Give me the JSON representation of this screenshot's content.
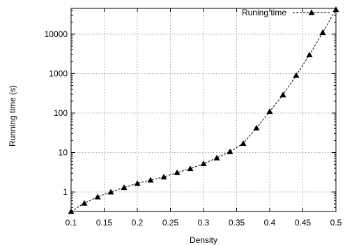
{
  "chart_data": {
    "type": "line",
    "xlabel": "Density",
    "ylabel": "Running time (s)",
    "xlim": [
      0.1,
      0.5
    ],
    "ylim": [
      0.32,
      45000
    ],
    "yscale": "log",
    "grid": true,
    "legend_position": "top-right",
    "x_ticks": [
      0.1,
      0.15,
      0.2,
      0.25,
      0.3,
      0.35,
      0.4,
      0.45,
      0.5
    ],
    "x_tick_labels": [
      "0.1",
      "0.15",
      "0.2",
      "0.25",
      "0.3",
      "0.35",
      "0.4",
      "0.45",
      "0.5"
    ],
    "y_ticks": [
      1,
      10,
      100,
      1000,
      10000
    ],
    "y_tick_labels": [
      "1",
      "10",
      "100",
      "1000",
      "10000"
    ],
    "series": [
      {
        "name": "Runing time",
        "line_style": "dashed",
        "marker": "triangle",
        "color": "#000000",
        "x": [
          0.1,
          0.12,
          0.14,
          0.16,
          0.18,
          0.2,
          0.22,
          0.24,
          0.26,
          0.28,
          0.3,
          0.32,
          0.34,
          0.36,
          0.38,
          0.4,
          0.42,
          0.44,
          0.46,
          0.48,
          0.5
        ],
        "y": [
          0.32,
          0.52,
          0.75,
          1.0,
          1.3,
          1.65,
          2.0,
          2.4,
          3.1,
          3.9,
          5.2,
          7.3,
          10.5,
          17,
          42,
          110,
          290,
          900,
          3000,
          11000,
          42000
        ]
      }
    ]
  }
}
